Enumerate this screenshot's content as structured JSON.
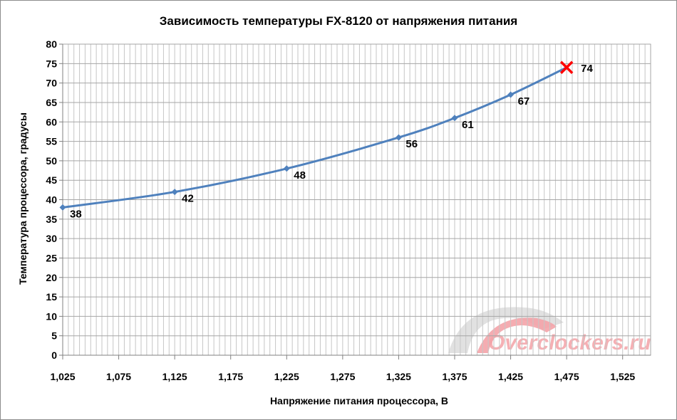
{
  "chart_data": {
    "type": "line",
    "title": "Зависимость температуры FX-8120 от напряжения питания",
    "xlabel": "Напряжение питания процессора, В",
    "ylabel": "Температура процессора, градусы",
    "x_ticks": [
      "1,025",
      "1,075",
      "1,125",
      "1,175",
      "1,225",
      "1,275",
      "1,325",
      "1,375",
      "1,425",
      "1,475",
      "1,525"
    ],
    "xlim": [
      1.025,
      1.55
    ],
    "ylim": [
      0,
      80
    ],
    "y_major_step": 5,
    "grid": true,
    "legend": "none",
    "series": [
      {
        "color": "#4f81bd",
        "points": [
          {
            "x": 1.025,
            "y": 38,
            "label": "38"
          },
          {
            "x": 1.125,
            "y": 42,
            "label": "42"
          },
          {
            "x": 1.225,
            "y": 48,
            "label": "48"
          },
          {
            "x": 1.325,
            "y": 56,
            "label": "56"
          },
          {
            "x": 1.375,
            "y": 61,
            "label": "61"
          },
          {
            "x": 1.425,
            "y": 67,
            "label": "67"
          },
          {
            "x": 1.475,
            "y": 74,
            "label": "74",
            "marker": "x"
          }
        ]
      }
    ],
    "watermark": {
      "text": "Overclockers.ru",
      "color": "#f4a3a8"
    }
  }
}
